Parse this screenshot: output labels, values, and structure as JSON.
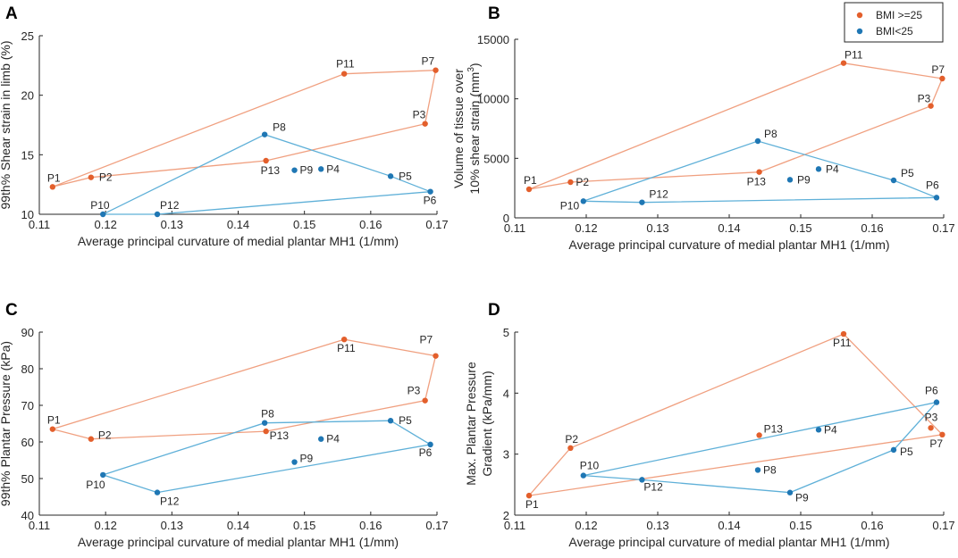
{
  "colors": {
    "bmi_high": "#e35f2c",
    "bmi_low": "#1f77b4",
    "line_high": "#f0a080",
    "line_low": "#5fb0d8",
    "axis": "#262626"
  },
  "legend": {
    "entries": [
      "BMI >=25",
      "BMI<25"
    ],
    "placement": "top-right of panel B"
  },
  "chart_data": [
    {
      "type": "scatter",
      "panel": "A",
      "xlabel": "Average principal curvature of medial plantar MH1 (1/mm)",
      "ylabel": "99th% Shear strain in limb (%)",
      "ylabel_sup": "",
      "ylabel_line2": "",
      "xlim": [
        0.11,
        0.17
      ],
      "ylim": [
        10,
        25
      ],
      "xticks": [
        0.11,
        0.12,
        0.13,
        0.14,
        0.15,
        0.16,
        0.17
      ],
      "xtick_labels": [
        "0.11",
        "0.12",
        "0.13",
        "0.14",
        "0.15",
        "0.16",
        "0.17"
      ],
      "yticks": [
        10,
        15,
        20,
        25
      ],
      "series": [
        {
          "name": "BMI >=25",
          "points": [
            {
              "label": "P1",
              "x": 0.112,
              "y": 12.3
            },
            {
              "label": "P2",
              "x": 0.1178,
              "y": 13.1
            },
            {
              "label": "P13",
              "x": 0.1442,
              "y": 14.5
            },
            {
              "label": "P3",
              "x": 0.1682,
              "y": 17.6
            },
            {
              "label": "P7",
              "x": 0.1698,
              "y": 22.1
            },
            {
              "label": "P11",
              "x": 0.156,
              "y": 21.8
            }
          ],
          "polygon": [
            "P1",
            "P2",
            "P13",
            "P3",
            "P7",
            "P11"
          ]
        },
        {
          "name": "BMI<25",
          "points": [
            {
              "label": "P10",
              "x": 0.1196,
              "y": 10.0
            },
            {
              "label": "P12",
              "x": 0.1278,
              "y": 10.0
            },
            {
              "label": "P6",
              "x": 0.169,
              "y": 11.9
            },
            {
              "label": "P5",
              "x": 0.163,
              "y": 13.2
            },
            {
              "label": "P8",
              "x": 0.144,
              "y": 16.7
            },
            {
              "label": "P9",
              "x": 0.1485,
              "y": 13.7
            },
            {
              "label": "P4",
              "x": 0.1525,
              "y": 13.8
            }
          ],
          "polygon": [
            "P10",
            "P12",
            "P6",
            "P5",
            "P8"
          ]
        }
      ]
    },
    {
      "type": "scatter",
      "panel": "B",
      "xlabel": "Average principal curvature of medial plantar MH1 (1/mm)",
      "ylabel": "Volume of tissue over",
      "ylabel_line2": "10% shear strain (mm",
      "ylabel_sup": "3",
      "xlim": [
        0.11,
        0.17
      ],
      "ylim": [
        0,
        15000
      ],
      "xticks": [
        0.11,
        0.12,
        0.13,
        0.14,
        0.15,
        0.16,
        0.17
      ],
      "xtick_labels": [
        "0.11",
        "0.12",
        "0.13",
        "0.14",
        "0.15",
        "0.16",
        "0.17"
      ],
      "yticks": [
        0,
        5000,
        10000,
        15000
      ],
      "series": [
        {
          "name": "BMI >=25",
          "points": [
            {
              "label": "P1",
              "x": 0.112,
              "y": 2400
            },
            {
              "label": "P2",
              "x": 0.1178,
              "y": 3000
            },
            {
              "label": "P13",
              "x": 0.1442,
              "y": 3850
            },
            {
              "label": "P3",
              "x": 0.1682,
              "y": 9400
            },
            {
              "label": "P7",
              "x": 0.1698,
              "y": 11700
            },
            {
              "label": "P11",
              "x": 0.156,
              "y": 13000
            }
          ],
          "polygon": [
            "P1",
            "P2",
            "P13",
            "P3",
            "P7",
            "P11"
          ]
        },
        {
          "name": "BMI<25",
          "points": [
            {
              "label": "P10",
              "x": 0.1196,
              "y": 1400
            },
            {
              "label": "P12",
              "x": 0.1278,
              "y": 1300
            },
            {
              "label": "P6",
              "x": 0.169,
              "y": 1700
            },
            {
              "label": "P5",
              "x": 0.163,
              "y": 3150
            },
            {
              "label": "P8",
              "x": 0.144,
              "y": 6450
            },
            {
              "label": "P9",
              "x": 0.1485,
              "y": 3200
            },
            {
              "label": "P4",
              "x": 0.1525,
              "y": 4100
            }
          ],
          "polygon": [
            "P10",
            "P12",
            "P6",
            "P5",
            "P8"
          ]
        }
      ]
    },
    {
      "type": "scatter",
      "panel": "C",
      "xlabel": "Average principal curvature of medial plantar MH1 (1/mm)",
      "ylabel": "99th% Plantar Pressure (kPa)",
      "ylabel_sup": "",
      "ylabel_line2": "",
      "xlim": [
        0.11,
        0.17
      ],
      "ylim": [
        40,
        90
      ],
      "xticks": [
        0.11,
        0.12,
        0.13,
        0.14,
        0.15,
        0.16,
        0.17
      ],
      "xtick_labels": [
        "0.11",
        "0.12",
        "0.13",
        "0.14",
        "0.15",
        "0.16",
        "0.17"
      ],
      "yticks": [
        40,
        50,
        60,
        70,
        80,
        90
      ],
      "series": [
        {
          "name": "BMI >=25",
          "points": [
            {
              "label": "P1",
              "x": 0.112,
              "y": 63.5
            },
            {
              "label": "P2",
              "x": 0.1178,
              "y": 60.8
            },
            {
              "label": "P13",
              "x": 0.1442,
              "y": 62.9
            },
            {
              "label": "P3",
              "x": 0.1682,
              "y": 71.3
            },
            {
              "label": "P7",
              "x": 0.1698,
              "y": 83.5
            },
            {
              "label": "P11",
              "x": 0.156,
              "y": 88.0
            }
          ],
          "polygon": [
            "P1",
            "P2",
            "P13",
            "P3",
            "P7",
            "P11"
          ]
        },
        {
          "name": "BMI<25",
          "points": [
            {
              "label": "P10",
              "x": 0.1196,
              "y": 51.0
            },
            {
              "label": "P12",
              "x": 0.1278,
              "y": 46.2
            },
            {
              "label": "P6",
              "x": 0.169,
              "y": 59.3
            },
            {
              "label": "P5",
              "x": 0.163,
              "y": 65.8
            },
            {
              "label": "P8",
              "x": 0.144,
              "y": 65.2
            },
            {
              "label": "P9",
              "x": 0.1485,
              "y": 54.5
            },
            {
              "label": "P4",
              "x": 0.1525,
              "y": 60.8
            }
          ],
          "polygon": [
            "P10",
            "P12",
            "P6",
            "P5",
            "P8"
          ]
        }
      ]
    },
    {
      "type": "scatter",
      "panel": "D",
      "xlabel": "Average principal curvature of medial plantar MH1 (1/mm)",
      "ylabel": "Max. Plantar Pressure",
      "ylabel_line2": "Gradient (kPa/mm)",
      "ylabel_sup": "",
      "xlim": [
        0.11,
        0.17
      ],
      "ylim": [
        2,
        5
      ],
      "xticks": [
        0.11,
        0.12,
        0.13,
        0.14,
        0.15,
        0.16,
        0.17
      ],
      "xtick_labels": [
        "0.11",
        "0.12",
        "0.13",
        "0.14",
        "0.15",
        "0.16",
        "0.17"
      ],
      "yticks": [
        2,
        3,
        4,
        5
      ],
      "series": [
        {
          "name": "BMI >=25",
          "points": [
            {
              "label": "P1",
              "x": 0.112,
              "y": 2.32
            },
            {
              "label": "P2",
              "x": 0.1178,
              "y": 3.1
            },
            {
              "label": "P11",
              "x": 0.156,
              "y": 4.97
            },
            {
              "label": "P7",
              "x": 0.1698,
              "y": 3.32
            },
            {
              "label": "P3",
              "x": 0.1682,
              "y": 3.43
            },
            {
              "label": "P13",
              "x": 0.1442,
              "y": 3.31
            }
          ],
          "polygon": [
            "P1",
            "P2",
            "P11",
            "P7"
          ]
        },
        {
          "name": "BMI<25",
          "points": [
            {
              "label": "P10",
              "x": 0.1196,
              "y": 2.65
            },
            {
              "label": "P12",
              "x": 0.1278,
              "y": 2.58
            },
            {
              "label": "P9",
              "x": 0.1485,
              "y": 2.37
            },
            {
              "label": "P5",
              "x": 0.163,
              "y": 3.07
            },
            {
              "label": "P6",
              "x": 0.169,
              "y": 3.85
            },
            {
              "label": "P8",
              "x": 0.144,
              "y": 2.74
            },
            {
              "label": "P4",
              "x": 0.1525,
              "y": 3.4
            }
          ],
          "polygon": [
            "P10",
            "P12",
            "P9",
            "P5",
            "P6"
          ]
        }
      ]
    }
  ]
}
